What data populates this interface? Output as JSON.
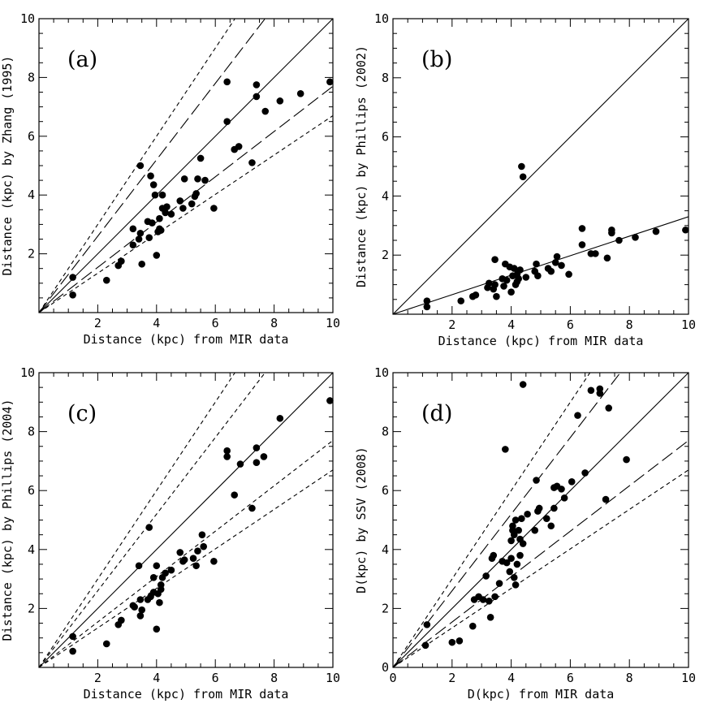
{
  "chart_data": [
    {
      "id": "a",
      "type": "scatter",
      "panel_label": "(a)",
      "xlabel": "Distance (kpc) from MIR data",
      "ylabel": "Distance (kpc) by Zhang (1995)",
      "xlim": [
        0,
        10
      ],
      "ylim": [
        0,
        10
      ],
      "xticks": [
        "2",
        "4",
        "6",
        "8",
        "10"
      ],
      "yticks": [
        "2",
        "4",
        "6",
        "8",
        "10"
      ],
      "lines": [
        {
          "slope": 1.0,
          "style": "solid"
        },
        {
          "slope": 1.3,
          "style": "long-dash"
        },
        {
          "slope": 0.77,
          "style": "long-dash"
        },
        {
          "slope": 1.5,
          "style": "short-dash"
        },
        {
          "slope": 0.67,
          "style": "short-dash"
        }
      ],
      "points": [
        [
          1.15,
          1.2
        ],
        [
          1.15,
          0.6
        ],
        [
          2.3,
          1.1
        ],
        [
          2.7,
          1.6
        ],
        [
          2.8,
          1.75
        ],
        [
          3.2,
          2.85
        ],
        [
          3.2,
          2.3
        ],
        [
          3.4,
          2.5
        ],
        [
          3.45,
          2.7
        ],
        [
          3.45,
          5.0
        ],
        [
          3.5,
          1.65
        ],
        [
          3.7,
          3.1
        ],
        [
          3.75,
          2.55
        ],
        [
          3.8,
          4.65
        ],
        [
          3.85,
          3.05
        ],
        [
          3.9,
          4.35
        ],
        [
          3.95,
          4.0
        ],
        [
          4.0,
          1.95
        ],
        [
          4.05,
          2.75
        ],
        [
          4.1,
          2.85
        ],
        [
          4.1,
          3.2
        ],
        [
          4.15,
          2.8
        ],
        [
          4.2,
          3.55
        ],
        [
          4.2,
          4.0
        ],
        [
          4.3,
          3.4
        ],
        [
          4.35,
          3.6
        ],
        [
          4.5,
          3.35
        ],
        [
          4.8,
          3.8
        ],
        [
          4.9,
          3.55
        ],
        [
          4.95,
          4.55
        ],
        [
          5.2,
          3.7
        ],
        [
          5.3,
          3.95
        ],
        [
          5.35,
          4.05
        ],
        [
          5.4,
          4.55
        ],
        [
          5.5,
          5.25
        ],
        [
          5.65,
          4.5
        ],
        [
          5.95,
          3.55
        ],
        [
          6.4,
          6.5
        ],
        [
          6.4,
          7.85
        ],
        [
          6.65,
          5.55
        ],
        [
          6.8,
          5.65
        ],
        [
          7.25,
          5.1
        ],
        [
          7.4,
          7.35
        ],
        [
          7.4,
          7.75
        ],
        [
          7.7,
          6.85
        ],
        [
          8.2,
          7.2
        ],
        [
          8.9,
          7.45
        ],
        [
          9.9,
          7.85
        ]
      ]
    },
    {
      "id": "b",
      "type": "scatter",
      "panel_label": "(b)",
      "xlabel": "Distance (kpc) from MIR data",
      "ylabel": "Distance (kpc) by Phillips (2002)",
      "xlim": [
        0,
        10
      ],
      "ylim": [
        0,
        10
      ],
      "xticks": [
        "2",
        "4",
        "6",
        "8",
        "10"
      ],
      "yticks": [
        "2",
        "4",
        "6",
        "8",
        "10"
      ],
      "lines": [
        {
          "slope": 1.0,
          "style": "solid"
        },
        {
          "slope": 0.33,
          "style": "solid"
        }
      ],
      "points": [
        [
          1.15,
          0.45
        ],
        [
          1.15,
          0.25
        ],
        [
          2.3,
          0.45
        ],
        [
          2.7,
          0.6
        ],
        [
          2.8,
          0.65
        ],
        [
          3.2,
          0.9
        ],
        [
          3.25,
          1.05
        ],
        [
          3.4,
          0.85
        ],
        [
          3.45,
          1.0
        ],
        [
          3.45,
          1.85
        ],
        [
          3.5,
          0.6
        ],
        [
          3.7,
          1.2
        ],
        [
          3.75,
          0.95
        ],
        [
          3.8,
          1.7
        ],
        [
          3.85,
          1.15
        ],
        [
          3.95,
          1.6
        ],
        [
          4.0,
          0.75
        ],
        [
          4.05,
          1.3
        ],
        [
          4.1,
          1.55
        ],
        [
          4.15,
          1.0
        ],
        [
          4.2,
          1.1
        ],
        [
          4.2,
          1.35
        ],
        [
          4.25,
          1.2
        ],
        [
          4.3,
          1.5
        ],
        [
          4.35,
          5.0
        ],
        [
          4.4,
          4.65
        ],
        [
          4.5,
          1.25
        ],
        [
          4.8,
          1.45
        ],
        [
          4.85,
          1.7
        ],
        [
          4.9,
          1.3
        ],
        [
          5.25,
          1.55
        ],
        [
          5.35,
          1.45
        ],
        [
          5.5,
          1.75
        ],
        [
          5.55,
          1.95
        ],
        [
          5.7,
          1.65
        ],
        [
          5.95,
          1.35
        ],
        [
          6.4,
          2.35
        ],
        [
          6.4,
          2.9
        ],
        [
          6.7,
          2.05
        ],
        [
          6.85,
          2.05
        ],
        [
          7.25,
          1.9
        ],
        [
          7.4,
          2.75
        ],
        [
          7.4,
          2.85
        ],
        [
          7.65,
          2.5
        ],
        [
          8.2,
          2.6
        ],
        [
          8.9,
          2.8
        ],
        [
          9.9,
          2.85
        ]
      ]
    },
    {
      "id": "c",
      "type": "scatter",
      "panel_label": "(c)",
      "xlabel": "Distance (kpc) from MIR data",
      "ylabel": "Distance (kpc) by Phillips (2004)",
      "xlim": [
        0,
        10
      ],
      "ylim": [
        0,
        10
      ],
      "xticks": [
        "2",
        "4",
        "6",
        "8",
        "10"
      ],
      "yticks": [
        "2",
        "4",
        "6",
        "8",
        "10"
      ],
      "lines": [
        {
          "slope": 1.0,
          "style": "solid"
        },
        {
          "slope": 1.3,
          "style": "short-dash"
        },
        {
          "slope": 0.77,
          "style": "short-dash"
        },
        {
          "slope": 1.5,
          "style": "short-dash"
        },
        {
          "slope": 0.67,
          "style": "short-dash"
        }
      ],
      "points": [
        [
          1.15,
          1.05
        ],
        [
          1.15,
          0.55
        ],
        [
          2.3,
          0.8
        ],
        [
          2.7,
          1.45
        ],
        [
          2.8,
          1.6
        ],
        [
          3.2,
          2.1
        ],
        [
          3.25,
          2.05
        ],
        [
          3.4,
          3.45
        ],
        [
          3.45,
          1.75
        ],
        [
          3.45,
          2.3
        ],
        [
          3.5,
          1.95
        ],
        [
          3.7,
          2.3
        ],
        [
          3.75,
          4.75
        ],
        [
          3.8,
          2.4
        ],
        [
          3.9,
          2.55
        ],
        [
          3.9,
          3.05
        ],
        [
          4.0,
          1.3
        ],
        [
          4.0,
          3.45
        ],
        [
          4.05,
          2.5
        ],
        [
          4.1,
          2.2
        ],
        [
          4.15,
          2.65
        ],
        [
          4.15,
          2.8
        ],
        [
          4.2,
          3.05
        ],
        [
          4.3,
          3.2
        ],
        [
          4.5,
          3.3
        ],
        [
          4.8,
          3.9
        ],
        [
          4.9,
          3.6
        ],
        [
          4.95,
          3.65
        ],
        [
          5.25,
          3.7
        ],
        [
          5.35,
          3.45
        ],
        [
          5.4,
          3.95
        ],
        [
          5.55,
          4.5
        ],
        [
          5.6,
          4.1
        ],
        [
          5.95,
          3.6
        ],
        [
          6.4,
          7.15
        ],
        [
          6.4,
          7.35
        ],
        [
          6.65,
          5.85
        ],
        [
          6.85,
          6.9
        ],
        [
          7.25,
          5.4
        ],
        [
          7.4,
          6.95
        ],
        [
          7.4,
          7.45
        ],
        [
          7.65,
          7.15
        ],
        [
          8.2,
          8.45
        ],
        [
          9.9,
          9.05
        ]
      ]
    },
    {
      "id": "d",
      "type": "scatter",
      "panel_label": "(d)",
      "xlabel": "D(kpc) from MIR data",
      "ylabel": "D(kpc) by SSV (2008)",
      "xlim": [
        0,
        10
      ],
      "ylim": [
        0,
        10
      ],
      "xticks": [
        "0",
        "2",
        "4",
        "6",
        "8",
        "10"
      ],
      "yticks": [
        "0",
        "2",
        "4",
        "6",
        "8",
        "10"
      ],
      "lines": [
        {
          "slope": 1.0,
          "style": "solid"
        },
        {
          "slope": 1.3,
          "style": "long-dash"
        },
        {
          "slope": 0.77,
          "style": "long-dash"
        },
        {
          "slope": 1.5,
          "style": "short-dash"
        },
        {
          "slope": 0.67,
          "style": "short-dash"
        }
      ],
      "points": [
        [
          1.15,
          1.45
        ],
        [
          1.1,
          0.75
        ],
        [
          2.0,
          0.85
        ],
        [
          2.25,
          0.9
        ],
        [
          2.7,
          1.4
        ],
        [
          2.75,
          2.3
        ],
        [
          2.9,
          2.4
        ],
        [
          3.05,
          2.3
        ],
        [
          3.15,
          3.1
        ],
        [
          3.25,
          2.25
        ],
        [
          3.3,
          1.7
        ],
        [
          3.35,
          3.7
        ],
        [
          3.4,
          3.8
        ],
        [
          3.45,
          2.4
        ],
        [
          3.6,
          2.85
        ],
        [
          3.7,
          3.6
        ],
        [
          3.8,
          7.4
        ],
        [
          3.85,
          3.55
        ],
        [
          3.95,
          3.25
        ],
        [
          4.0,
          3.7
        ],
        [
          4.0,
          4.3
        ],
        [
          4.05,
          4.65
        ],
        [
          4.05,
          4.8
        ],
        [
          4.1,
          3.05
        ],
        [
          4.1,
          4.5
        ],
        [
          4.15,
          2.8
        ],
        [
          4.15,
          5.0
        ],
        [
          4.2,
          3.5
        ],
        [
          4.25,
          4.65
        ],
        [
          4.3,
          3.8
        ],
        [
          4.3,
          4.35
        ],
        [
          4.35,
          5.05
        ],
        [
          4.4,
          4.2
        ],
        [
          4.4,
          9.6
        ],
        [
          4.55,
          5.2
        ],
        [
          4.8,
          4.65
        ],
        [
          4.85,
          6.35
        ],
        [
          4.9,
          5.3
        ],
        [
          4.95,
          5.4
        ],
        [
          5.2,
          5.05
        ],
        [
          5.35,
          4.8
        ],
        [
          5.45,
          5.4
        ],
        [
          5.45,
          6.1
        ],
        [
          5.55,
          6.15
        ],
        [
          5.7,
          6.05
        ],
        [
          5.8,
          5.75
        ],
        [
          6.05,
          6.3
        ],
        [
          6.25,
          8.55
        ],
        [
          6.5,
          6.6
        ],
        [
          6.7,
          9.4
        ],
        [
          7.0,
          9.3
        ],
        [
          7.0,
          9.45
        ],
        [
          7.2,
          5.7
        ],
        [
          7.3,
          8.8
        ],
        [
          7.9,
          7.05
        ]
      ]
    }
  ]
}
